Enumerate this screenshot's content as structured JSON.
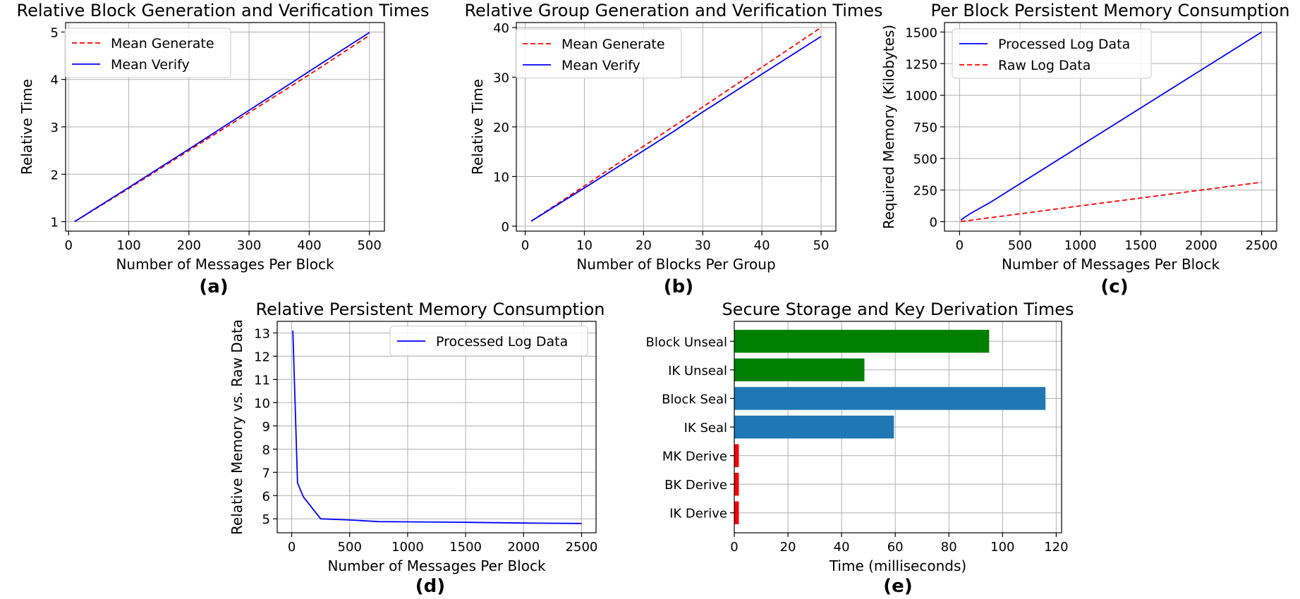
{
  "chart_data": [
    {
      "id": "a",
      "type": "line",
      "panel_label": "(a)",
      "title": "Relative Block Generation and Verification Times",
      "xlabel": "Number of Messages Per Block",
      "ylabel": "Relative Time",
      "xlim": [
        -5,
        525
      ],
      "ylim": [
        0.8,
        5.2
      ],
      "xticks": [
        0,
        100,
        200,
        300,
        400,
        500
      ],
      "yticks": [
        1,
        2,
        3,
        4,
        5
      ],
      "grid": true,
      "legend": "top-left",
      "series": [
        {
          "name": "Mean Generate",
          "color": "#ff0000",
          "dash": true,
          "x": [
            10,
            100,
            200,
            300,
            400,
            500
          ],
          "y": [
            1.0,
            1.7,
            2.5,
            3.3,
            4.1,
            4.93
          ]
        },
        {
          "name": "Mean Verify",
          "color": "#0000ff",
          "dash": false,
          "x": [
            10,
            100,
            200,
            300,
            400,
            500
          ],
          "y": [
            1.0,
            1.72,
            2.53,
            3.35,
            4.17,
            4.99
          ]
        }
      ]
    },
    {
      "id": "b",
      "type": "line",
      "panel_label": "(b)",
      "title": "Relative Group Generation and Verification Times",
      "xlabel": "Number of Blocks Per Group",
      "ylabel": "Relative Time",
      "xlim": [
        -1.5,
        52.5
      ],
      "ylim": [
        -1.0,
        41.0
      ],
      "xticks": [
        0,
        10,
        20,
        30,
        40,
        50
      ],
      "yticks": [
        0,
        10,
        20,
        30,
        40
      ],
      "grid": true,
      "legend": "top-left",
      "series": [
        {
          "name": "Mean Generate",
          "color": "#ff0000",
          "dash": true,
          "x": [
            1,
            10,
            20,
            30,
            40,
            50
          ],
          "y": [
            1.0,
            8.1,
            16.1,
            24.0,
            32.0,
            40.0
          ]
        },
        {
          "name": "Mean Verify",
          "color": "#0000ff",
          "dash": false,
          "x": [
            1,
            10,
            20,
            25,
            30,
            40,
            50
          ],
          "y": [
            1.0,
            7.7,
            15.2,
            19.0,
            23.0,
            30.6,
            38.2
          ]
        }
      ]
    },
    {
      "id": "c",
      "type": "line",
      "panel_label": "(c)",
      "title": "Per Block Persistent Memory Consumption",
      "xlabel": "Number of Messages Per Block",
      "ylabel": "Required Memory (Kilobytes)",
      "xlim": [
        -125,
        2625
      ],
      "ylim": [
        -75,
        1575
      ],
      "xticks": [
        0,
        500,
        1000,
        1500,
        2000,
        2500
      ],
      "yticks": [
        0,
        250,
        500,
        750,
        1000,
        1250,
        1500
      ],
      "grid": true,
      "legend": "top-left",
      "series": [
        {
          "name": "Processed Log Data",
          "color": "#0000ff",
          "dash": false,
          "x": [
            10,
            50,
            100,
            250,
            500,
            1000,
            1500,
            2000,
            2500
          ],
          "y": [
            13,
            40,
            70,
            150,
            300,
            600,
            900,
            1200,
            1500
          ]
        },
        {
          "name": "Raw Log Data",
          "color": "#ff0000",
          "dash": true,
          "x": [
            10,
            500,
            1000,
            1500,
            2000,
            2500
          ],
          "y": [
            1,
            62,
            125,
            187,
            250,
            312
          ]
        }
      ]
    },
    {
      "id": "d",
      "type": "line",
      "panel_label": "(d)",
      "title": "Relative Persistent Memory Consumption",
      "xlabel": "Number of Messages Per Block",
      "ylabel": "Relative Memory vs. Raw Data",
      "xlim": [
        -125,
        2625
      ],
      "ylim": [
        4.4,
        13.5
      ],
      "xticks": [
        0,
        500,
        1000,
        1500,
        2000,
        2500
      ],
      "yticks": [
        5,
        6,
        7,
        8,
        9,
        10,
        11,
        12,
        13
      ],
      "grid": true,
      "legend": "top-right",
      "series": [
        {
          "name": "Processed Log Data",
          "color": "#0000ff",
          "dash": false,
          "x": [
            10,
            50,
            100,
            250,
            500,
            750,
            1000,
            1500,
            2000,
            2500
          ],
          "y": [
            13.1,
            6.55,
            5.95,
            5.0,
            4.95,
            4.88,
            4.87,
            4.85,
            4.82,
            4.8
          ]
        }
      ]
    },
    {
      "id": "e",
      "type": "bar",
      "orientation": "horizontal",
      "panel_label": "(e)",
      "title": "Secure Storage and Key Derivation Times",
      "xlabel": "Time (milliseconds)",
      "ylabel": "",
      "xlim": [
        0,
        122
      ],
      "xticks": [
        0,
        20,
        40,
        60,
        80,
        100,
        120
      ],
      "grid": true,
      "categories": [
        "Block Unseal",
        "IK Unseal",
        "Block Seal",
        "IK Seal",
        "MK Derive",
        "BK Derive",
        "IK Derive"
      ],
      "values": [
        95,
        48.5,
        116,
        59.5,
        1.7,
        1.7,
        1.7
      ],
      "colors": [
        "#008000",
        "#008000",
        "#1f77b4",
        "#1f77b4",
        "#ff0000",
        "#ff0000",
        "#ff0000"
      ]
    }
  ]
}
